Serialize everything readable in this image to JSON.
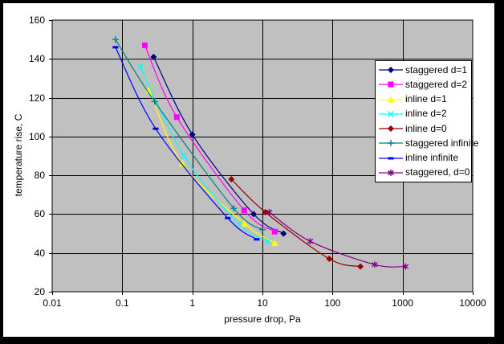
{
  "frame": {
    "border_color": "#000000",
    "canvas_color": "#ffffff"
  },
  "chart_data": {
    "type": "line",
    "title": "",
    "xlabel": "pressure drop, Pa",
    "ylabel": "temperature rise, C",
    "x_scale": "log",
    "xlim": [
      0.01,
      10000
    ],
    "ylim": [
      20,
      160
    ],
    "x_ticks": [
      "0.01",
      "0.1",
      "1",
      "10",
      "100",
      "1000",
      "10000"
    ],
    "y_ticks": [
      160,
      140,
      120,
      100,
      80,
      60,
      40,
      20
    ],
    "grid": true,
    "plot_bg": "#c0c0c0",
    "gridline_color": "#000000",
    "legend_position": "inside-right-overlay",
    "series": [
      {
        "name": "staggered d=1",
        "color": "#000080",
        "marker": "diamond",
        "points": [
          [
            0.28,
            141
          ],
          [
            1.0,
            101
          ],
          [
            7.5,
            60
          ],
          [
            20,
            50
          ]
        ]
      },
      {
        "name": "staggered d=2",
        "color": "#ff00ff",
        "marker": "square",
        "points": [
          [
            0.21,
            147
          ],
          [
            0.6,
            110
          ],
          [
            5.5,
            62
          ],
          [
            15,
            51
          ]
        ]
      },
      {
        "name": "inline d=1",
        "color": "#ffff00",
        "marker": "triangle",
        "points": [
          [
            0.24,
            124
          ],
          [
            0.72,
            86
          ],
          [
            5.6,
            55
          ],
          [
            15,
            45
          ]
        ]
      },
      {
        "name": "inline d=2",
        "color": "#00ffff",
        "marker": "x",
        "points": [
          [
            0.18,
            136
          ],
          [
            0.76,
            90
          ],
          [
            4.6,
            55
          ],
          [
            12,
            46
          ]
        ]
      },
      {
        "name": "inline d=0",
        "color": "#990000",
        "marker": "diamond",
        "points": [
          [
            3.6,
            78
          ],
          [
            11,
            61
          ],
          [
            90,
            37
          ],
          [
            250,
            33
          ]
        ]
      },
      {
        "name": "staggered infinite",
        "color": "#008080",
        "marker": "plus",
        "points": [
          [
            0.08,
            150
          ],
          [
            0.29,
            118
          ],
          [
            3.9,
            63
          ],
          [
            10,
            52
          ]
        ]
      },
      {
        "name": "inline infinite",
        "color": "#0000ff",
        "marker": "dash",
        "points": [
          [
            0.08,
            146
          ],
          [
            0.3,
            104
          ],
          [
            3.2,
            58
          ],
          [
            8.3,
            47
          ]
        ]
      },
      {
        "name": "staggered, d=0",
        "color": "#800080",
        "marker": "asterisk",
        "points": [
          [
            12.5,
            61
          ],
          [
            48,
            46
          ],
          [
            400,
            34
          ],
          [
            1100,
            33
          ]
        ]
      }
    ]
  }
}
